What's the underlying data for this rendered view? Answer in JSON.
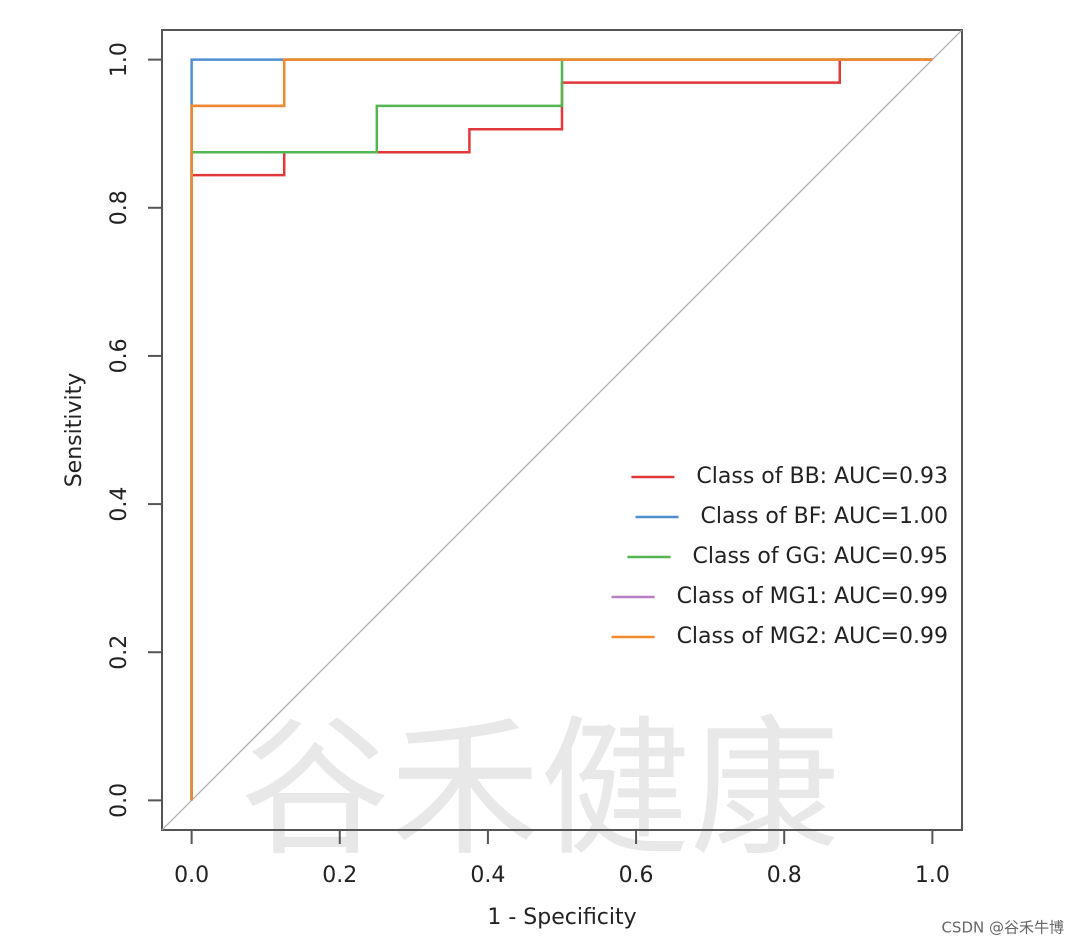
{
  "chart_data": {
    "type": "line",
    "xlabel": "1 - Specificity",
    "ylabel": "Sensitivity",
    "xlim": [
      -0.04,
      1.04
    ],
    "ylim": [
      -0.04,
      1.04
    ],
    "xticks": [
      {
        "value": 0,
        "label": "0.0"
      },
      0.2,
      0.4,
      0.6,
      0.8,
      {
        "value": 1,
        "label": "1.0"
      }
    ],
    "yticks": [
      {
        "value": 0,
        "label": "0.0"
      },
      0.2,
      0.4,
      0.6,
      0.8,
      {
        "value": 1,
        "label": "1.0"
      }
    ],
    "diagonal": true,
    "legend": "bottom-right",
    "series": [
      {
        "name": "Class of BB: AUC=0.93",
        "color": "#e0383a",
        "x": [
          0,
          0,
          0.125,
          0.125,
          0.375,
          0.375,
          0.5,
          0.5,
          0.875,
          0.875,
          1
        ],
        "values": [
          0,
          0.844,
          0.844,
          0.875,
          0.875,
          0.906,
          0.906,
          0.969,
          0.969,
          1,
          1
        ]
      },
      {
        "name": "Class of BF: AUC=1.00",
        "color": "#4f8fcf",
        "x": [
          0,
          0,
          1
        ],
        "values": [
          0,
          1,
          1
        ]
      },
      {
        "name": "Class of GG: AUC=0.95",
        "color": "#53b650",
        "x": [
          0,
          0,
          0.25,
          0.25,
          0.5,
          0.5,
          1
        ],
        "values": [
          0,
          0.875,
          0.875,
          0.9375,
          0.9375,
          1,
          1
        ]
      },
      {
        "name": "Class of MG1: AUC=0.99",
        "color": "#b77fc4",
        "x": [
          0,
          0,
          0.125,
          0.125,
          1
        ],
        "values": [
          0,
          0.9375,
          0.9375,
          1,
          1
        ]
      },
      {
        "name": "Class of MG2: AUC=0.99",
        "color": "#f08a2a",
        "x": [
          0,
          0,
          0.125,
          0.125,
          1
        ],
        "values": [
          0,
          0.9375,
          0.9375,
          1,
          1
        ]
      }
    ]
  },
  "watermark": {
    "logo_text": "谷禾健康",
    "credit": "CSDN @谷禾牛博"
  }
}
